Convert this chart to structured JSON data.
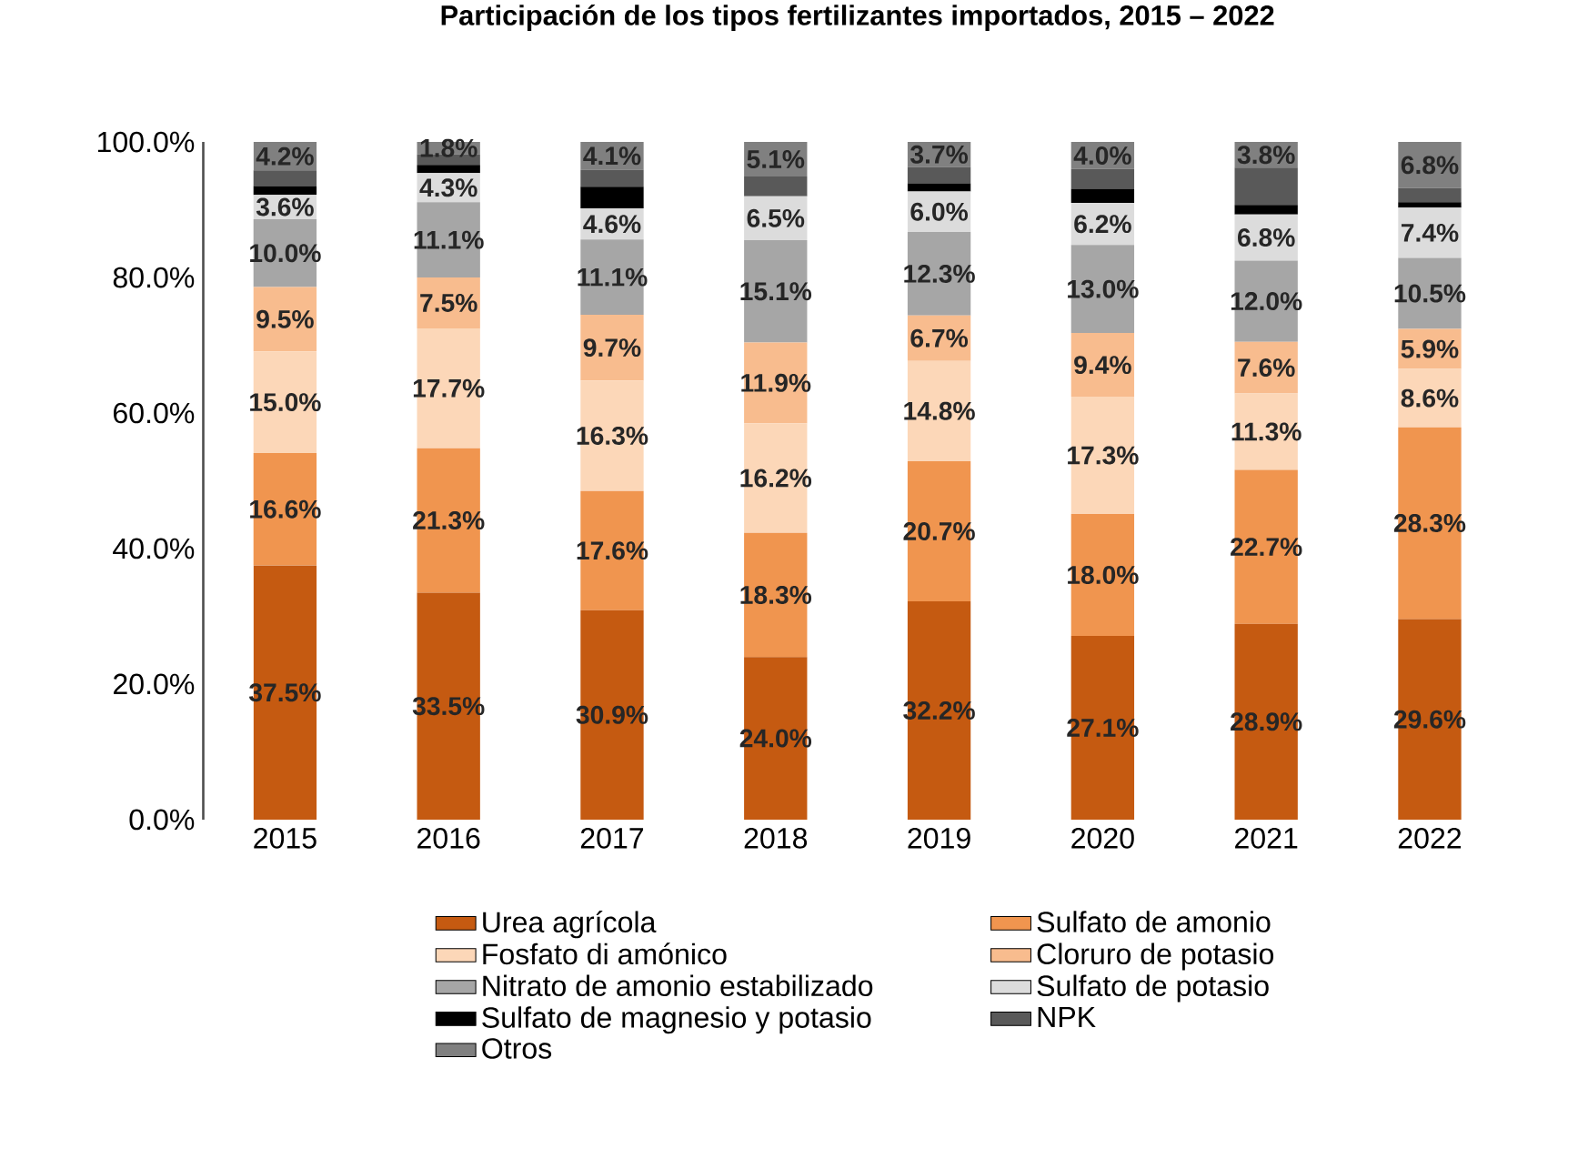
{
  "chart_data": {
    "type": "bar",
    "stacked": true,
    "title": "Participación de los tipos fertilizantes importados, 2015 – 2022",
    "categories": [
      "2015",
      "2016",
      "2017",
      "2018",
      "2019",
      "2020",
      "2021",
      "2022"
    ],
    "series": [
      {
        "name": "Urea agrícola",
        "color": "#c55a11",
        "values": [
          37.5,
          33.5,
          30.9,
          24.0,
          32.2,
          27.1,
          28.9,
          29.6
        ],
        "value_labels": [
          "37.5%",
          "33.5%",
          "30.9%",
          "24.0%",
          "32.2%",
          "27.1%",
          "28.9%",
          "29.6%"
        ]
      },
      {
        "name": "Sulfato de amonio",
        "color": "#f0954f",
        "values": [
          16.6,
          21.3,
          17.6,
          18.3,
          20.7,
          18.0,
          22.7,
          28.3
        ],
        "value_labels": [
          "16.6%",
          "21.3%",
          "17.6%",
          "18.3%",
          "20.7%",
          "18.0%",
          "22.7%",
          "28.3%"
        ]
      },
      {
        "name": "Fosfato di amónico",
        "color": "#fcd7b8",
        "values": [
          15.0,
          17.7,
          16.3,
          16.2,
          14.8,
          17.3,
          11.3,
          8.6
        ],
        "value_labels": [
          "15.0%",
          "17.7%",
          "16.3%",
          "16.2%",
          "14.8%",
          "17.3%",
          "11.3%",
          "8.6%"
        ]
      },
      {
        "name": "Cloruro de potasio",
        "color": "#f8bc8e",
        "values": [
          9.5,
          7.5,
          9.7,
          11.9,
          6.7,
          9.4,
          7.6,
          5.9
        ],
        "value_labels": [
          "9.5%",
          "7.5%",
          "9.7%",
          "11.9%",
          "6.7%",
          "9.4%",
          "7.6%",
          "5.9%"
        ]
      },
      {
        "name": "Nitrato de amonio estabilizado",
        "color": "#a6a6a6",
        "values": [
          10.0,
          11.1,
          11.1,
          15.1,
          12.3,
          13.0,
          12.0,
          10.5
        ],
        "value_labels": [
          "10.0%",
          "11.1%",
          "11.1%",
          "15.1%",
          "12.3%",
          "13.0%",
          "12.0%",
          "10.5%"
        ]
      },
      {
        "name": "Sulfato de potasio",
        "color": "#dcdcdc",
        "values": [
          3.6,
          4.3,
          4.6,
          6.5,
          6.0,
          6.2,
          6.8,
          7.4
        ],
        "value_labels": [
          "3.6%",
          "4.3%",
          "4.6%",
          "6.5%",
          "6.0%",
          "6.2%",
          "6.8%",
          "7.4%"
        ]
      },
      {
        "name": "Sulfato de magnesio y potasio",
        "color": "#000000",
        "values": [
          1.3,
          1.2,
          3.2,
          0,
          1.2,
          2.1,
          1.4,
          0.8
        ]
      },
      {
        "name": "NPK",
        "color": "#595959",
        "values": [
          2.3,
          1.6,
          2.5,
          2.9,
          2.4,
          2.9,
          5.5,
          2.1
        ]
      },
      {
        "name": "Otros",
        "color": "#808080",
        "values": [
          4.2,
          1.8,
          4.1,
          5.1,
          3.7,
          4.0,
          3.8,
          6.8
        ],
        "value_labels": [
          "4.2%",
          "1.8%",
          "4.1%",
          "5.1%",
          "3.7%",
          "4.0%",
          "3.8%",
          "6.8%"
        ]
      }
    ],
    "ylim": [
      0,
      100
    ],
    "yticks": [
      {
        "value": 0,
        "label": "0.0%"
      },
      {
        "value": 20,
        "label": "20.0%"
      },
      {
        "value": 40,
        "label": "40.0%"
      },
      {
        "value": 60,
        "label": "60.0%"
      },
      {
        "value": 80,
        "label": "80.0%"
      },
      {
        "value": 100,
        "label": "100.0%"
      }
    ],
    "legend": "bottom"
  }
}
